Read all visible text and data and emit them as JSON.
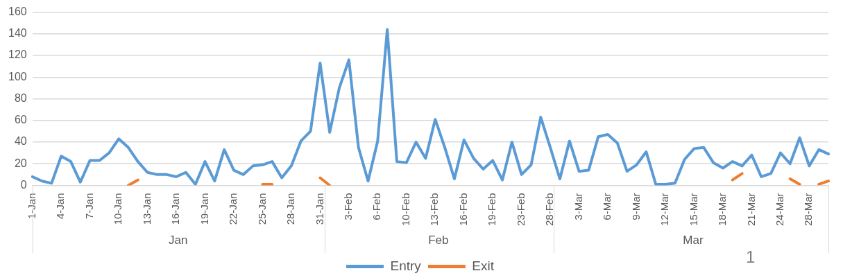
{
  "chart_data": {
    "type": "line",
    "categories": [
      "1-Jan",
      null,
      null,
      "4-Jan",
      null,
      null,
      "7-Jan",
      null,
      null,
      "10-Jan",
      null,
      null,
      "13-Jan",
      null,
      null,
      "16-Jan",
      null,
      null,
      "19-Jan",
      null,
      null,
      "22-Jan",
      null,
      null,
      "25-Jan",
      null,
      null,
      "28-Jan",
      null,
      null,
      "31-Jan",
      null,
      null,
      "3-Feb",
      null,
      null,
      "6-Feb",
      null,
      null,
      "10-Feb",
      null,
      null,
      "13-Feb",
      null,
      null,
      "16-Feb",
      null,
      null,
      "19-Feb",
      null,
      null,
      "23-Feb",
      null,
      null,
      "28-Feb",
      null,
      null,
      "3-Mar",
      null,
      null,
      "6-Mar",
      null,
      null,
      "9-Mar",
      null,
      null,
      "12-Mar",
      null,
      null,
      "15-Mar",
      null,
      null,
      "18-Mar",
      null,
      null,
      "21-Mar",
      null,
      null,
      "24-Mar",
      null,
      null,
      "28-Mar",
      null,
      null
    ],
    "series": [
      {
        "name": "Entry",
        "color": "#5b9bd5",
        "values": [
          8,
          4,
          2,
          27,
          22,
          3,
          23,
          23,
          30,
          43,
          35,
          22,
          12,
          10,
          10,
          8,
          12,
          1,
          22,
          4,
          33,
          14,
          10,
          18,
          19,
          22,
          7,
          18,
          41,
          50,
          113,
          49,
          90,
          116,
          35,
          4,
          41,
          144,
          22,
          21,
          40,
          25,
          61,
          35,
          6,
          42,
          25,
          15,
          23,
          5,
          40,
          10,
          19,
          63,
          35,
          6,
          41,
          13,
          14,
          45,
          47,
          39,
          13,
          19,
          31,
          1,
          1,
          2,
          24,
          34,
          35,
          21,
          16,
          22,
          18,
          28,
          8,
          11,
          30,
          20,
          44,
          18,
          33,
          29
        ]
      },
      {
        "name": "Exit",
        "color": "#ed7d31",
        "values": [
          null,
          null,
          null,
          null,
          null,
          null,
          null,
          null,
          null,
          null,
          0,
          5,
          null,
          null,
          null,
          null,
          null,
          null,
          null,
          null,
          null,
          null,
          null,
          null,
          1,
          1,
          null,
          null,
          null,
          null,
          7,
          0,
          null,
          null,
          null,
          null,
          null,
          null,
          null,
          null,
          null,
          null,
          null,
          null,
          null,
          null,
          null,
          null,
          null,
          null,
          null,
          null,
          null,
          null,
          null,
          null,
          null,
          null,
          null,
          null,
          null,
          null,
          null,
          null,
          null,
          null,
          null,
          null,
          null,
          null,
          null,
          null,
          null,
          5,
          11,
          null,
          null,
          null,
          null,
          6,
          1,
          null,
          1,
          4
        ]
      }
    ],
    "ylim": [
      0,
      160
    ],
    "yticks": [
      0,
      20,
      40,
      60,
      80,
      100,
      120,
      140,
      160
    ],
    "annotations": [
      "Jan",
      "Feb",
      "Mar",
      "1"
    ],
    "grid": "y",
    "legend": "bottom",
    "marker": "none",
    "line_style": "solid"
  }
}
